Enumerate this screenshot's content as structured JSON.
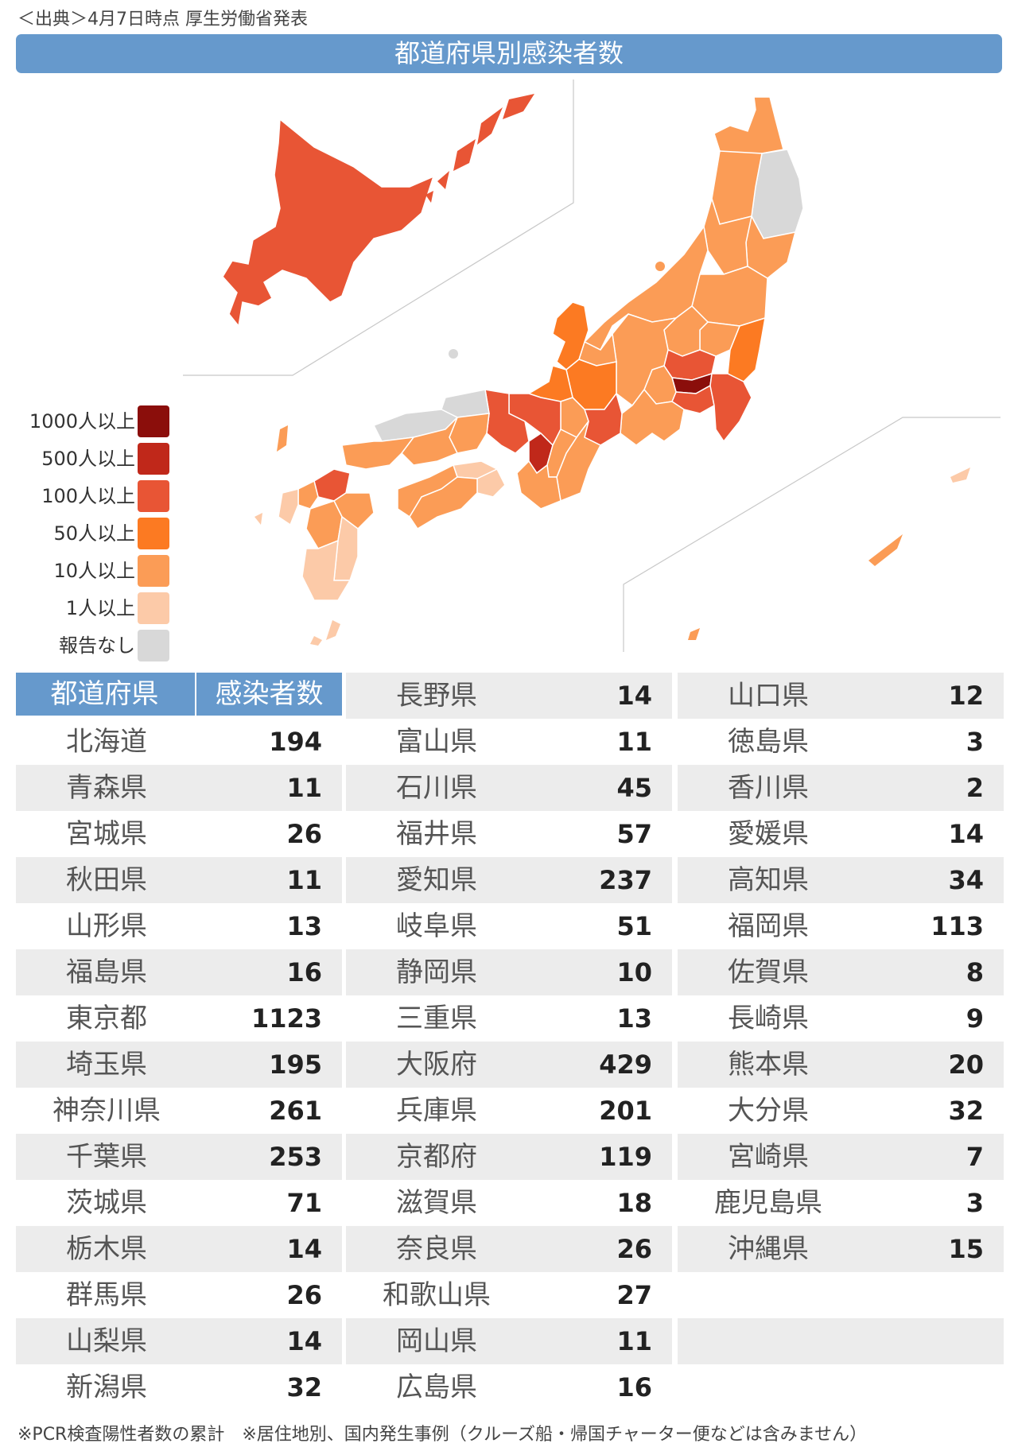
{
  "source": "＜出典＞4月7日時点 厚生労働省発表",
  "title": "都道府県別感染者数",
  "legend": [
    {
      "label": "1000人以上",
      "color": "#8b0e0b"
    },
    {
      "label": "500人以上",
      "color": "#c0281a"
    },
    {
      "label": "100人以上",
      "color": "#e85535"
    },
    {
      "label": "50人以上",
      "color": "#fc7a22"
    },
    {
      "label": "10人以上",
      "color": "#fb9c56"
    },
    {
      "label": "1人以上",
      "color": "#fccaa8"
    },
    {
      "label": "報告なし",
      "color": "#d8d8d8"
    }
  ],
  "table": {
    "header_pref": "都道府県",
    "header_count": "感染者数",
    "col1": [
      {
        "name": "北海道",
        "count": "194"
      },
      {
        "name": "青森県",
        "count": "11"
      },
      {
        "name": "宮城県",
        "count": "26"
      },
      {
        "name": "秋田県",
        "count": "11"
      },
      {
        "name": "山形県",
        "count": "13"
      },
      {
        "name": "福島県",
        "count": "16"
      },
      {
        "name": "東京都",
        "count": "1123"
      },
      {
        "name": "埼玉県",
        "count": "195"
      },
      {
        "name": "神奈川県",
        "count": "261"
      },
      {
        "name": "千葉県",
        "count": "253"
      },
      {
        "name": "茨城県",
        "count": "71"
      },
      {
        "name": "栃木県",
        "count": "14"
      },
      {
        "name": "群馬県",
        "count": "26"
      },
      {
        "name": "山梨県",
        "count": "14"
      },
      {
        "name": "新潟県",
        "count": "32"
      }
    ],
    "col2": [
      {
        "name": "長野県",
        "count": "14"
      },
      {
        "name": "富山県",
        "count": "11"
      },
      {
        "name": "石川県",
        "count": "45"
      },
      {
        "name": "福井県",
        "count": "57"
      },
      {
        "name": "愛知県",
        "count": "237"
      },
      {
        "name": "岐阜県",
        "count": "51"
      },
      {
        "name": "静岡県",
        "count": "10"
      },
      {
        "name": "三重県",
        "count": "13"
      },
      {
        "name": "大阪府",
        "count": "429"
      },
      {
        "name": "兵庫県",
        "count": "201"
      },
      {
        "name": "京都府",
        "count": "119"
      },
      {
        "name": "滋賀県",
        "count": "18"
      },
      {
        "name": "奈良県",
        "count": "26"
      },
      {
        "name": "和歌山県",
        "count": "27"
      },
      {
        "name": "岡山県",
        "count": "11"
      },
      {
        "name": "広島県",
        "count": "16"
      }
    ],
    "col3": [
      {
        "name": "山口県",
        "count": "12"
      },
      {
        "name": "徳島県",
        "count": "3"
      },
      {
        "name": "香川県",
        "count": "2"
      },
      {
        "name": "愛媛県",
        "count": "14"
      },
      {
        "name": "高知県",
        "count": "34"
      },
      {
        "name": "福岡県",
        "count": "113"
      },
      {
        "name": "佐賀県",
        "count": "8"
      },
      {
        "name": "長崎県",
        "count": "9"
      },
      {
        "name": "熊本県",
        "count": "20"
      },
      {
        "name": "大分県",
        "count": "32"
      },
      {
        "name": "宮崎県",
        "count": "7"
      },
      {
        "name": "鹿児島県",
        "count": "3"
      },
      {
        "name": "沖縄県",
        "count": "15"
      },
      {
        "name": "",
        "count": ""
      },
      {
        "name": "",
        "count": ""
      },
      {
        "name": "",
        "count": ""
      }
    ]
  },
  "footnote": "※PCR検査陽性者数の累計　※居住地別、国内発生事例（クルーズ船・帰国チャーター便などは含みません）"
}
